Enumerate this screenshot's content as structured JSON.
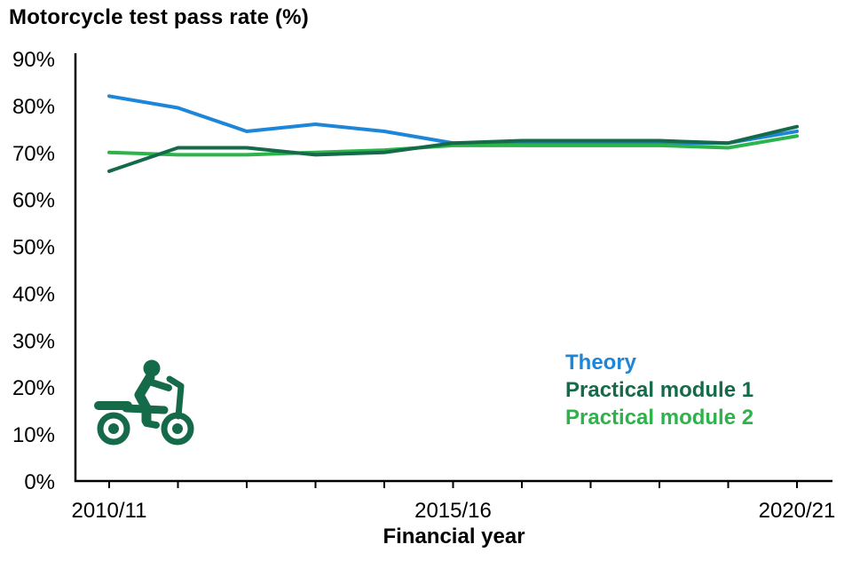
{
  "title": "Motorcycle test pass rate (%)",
  "colors": {
    "theory": "#1d86d8",
    "module1": "#156a4a",
    "module2": "#2cb34a",
    "axis": "#000000",
    "icon": "#156a4a",
    "text": "#000000"
  },
  "legend": {
    "position": "inside-lower-right",
    "items": [
      {
        "key": "theory",
        "label": "Theory"
      },
      {
        "key": "module1",
        "label": "Practical module 1"
      },
      {
        "key": "module2",
        "label": "Practical module 2"
      }
    ]
  },
  "icon": {
    "name": "motorcycle-rider",
    "description": "pictogram of a person riding a motorcycle"
  },
  "chart_data": {
    "type": "line",
    "title": "Motorcycle test pass rate (%)",
    "xlabel": "Financial year",
    "ylabel": "",
    "x": [
      "2010/11",
      "2011/12",
      "2012/13",
      "2013/14",
      "2014/15",
      "2015/16",
      "2016/17",
      "2017/18",
      "2018/19",
      "2019/20",
      "2020/21"
    ],
    "xtick_shown_indices": [
      0,
      5,
      10
    ],
    "xtick_labels_shown": [
      "2010/11",
      "2015/16",
      "2020/21"
    ],
    "ylim": [
      0,
      90
    ],
    "ytick_step": 10,
    "ytick_labels": [
      "0%",
      "10%",
      "20%",
      "30%",
      "40%",
      "50%",
      "60%",
      "70%",
      "80%",
      "90%"
    ],
    "grid": false,
    "series": [
      {
        "name": "Theory",
        "key": "theory",
        "values": [
          82,
          79.5,
          74.5,
          76,
          74.5,
          72,
          72,
          72,
          72,
          72,
          74.5
        ]
      },
      {
        "name": "Practical module 1",
        "key": "module1",
        "values": [
          66,
          71,
          71,
          69.5,
          70,
          72,
          72.5,
          72.5,
          72.5,
          72,
          75.5
        ]
      },
      {
        "name": "Practical module 2",
        "key": "module2",
        "values": [
          70,
          69.5,
          69.5,
          70,
          70.5,
          71.5,
          71.5,
          71.5,
          71.5,
          71,
          73.5
        ]
      }
    ]
  }
}
